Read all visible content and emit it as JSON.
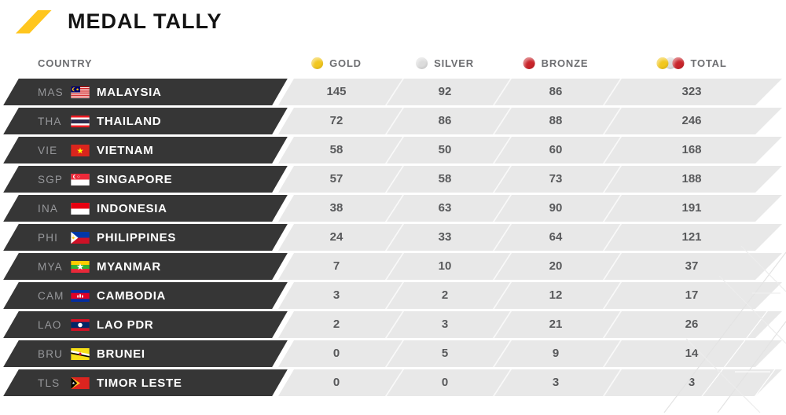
{
  "header": {
    "title": "MEDAL TALLY"
  },
  "table": {
    "country_header": "COUNTRY",
    "columns": [
      {
        "key": "gold",
        "label": "GOLD"
      },
      {
        "key": "silver",
        "label": "SILVER"
      },
      {
        "key": "bronze",
        "label": "BRONZE"
      },
      {
        "key": "total",
        "label": "TOTAL"
      }
    ],
    "rows": [
      {
        "code": "MAS",
        "country": "MALAYSIA",
        "flag": "malaysia",
        "gold": 145,
        "silver": 92,
        "bronze": 86,
        "total": 323
      },
      {
        "code": "THA",
        "country": "THAILAND",
        "flag": "thailand",
        "gold": 72,
        "silver": 86,
        "bronze": 88,
        "total": 246
      },
      {
        "code": "VIE",
        "country": "VIETNAM",
        "flag": "vietnam",
        "gold": 58,
        "silver": 50,
        "bronze": 60,
        "total": 168
      },
      {
        "code": "SGP",
        "country": "SINGAPORE",
        "flag": "singapore",
        "gold": 57,
        "silver": 58,
        "bronze": 73,
        "total": 188
      },
      {
        "code": "INA",
        "country": "INDONESIA",
        "flag": "indonesia",
        "gold": 38,
        "silver": 63,
        "bronze": 90,
        "total": 191
      },
      {
        "code": "PHI",
        "country": "PHILIPPINES",
        "flag": "philippines",
        "gold": 24,
        "silver": 33,
        "bronze": 64,
        "total": 121
      },
      {
        "code": "MYA",
        "country": "MYANMAR",
        "flag": "myanmar",
        "gold": 7,
        "silver": 10,
        "bronze": 20,
        "total": 37
      },
      {
        "code": "CAM",
        "country": "CAMBODIA",
        "flag": "cambodia",
        "gold": 3,
        "silver": 2,
        "bronze": 12,
        "total": 17
      },
      {
        "code": "LAO",
        "country": "LAO PDR",
        "flag": "laopdr",
        "gold": 2,
        "silver": 3,
        "bronze": 21,
        "total": 26
      },
      {
        "code": "BRU",
        "country": "BRUNEI",
        "flag": "brunei",
        "gold": 0,
        "silver": 5,
        "bronze": 9,
        "total": 14
      },
      {
        "code": "TLS",
        "country": "TIMOR LESTE",
        "flag": "timorleste",
        "gold": 0,
        "silver": 0,
        "bronze": 3,
        "total": 3
      }
    ]
  },
  "colors": {
    "accent_yellow": "#FFC61E",
    "gold_medal": "#F2C71E",
    "silver_medal": "#DCDCDC",
    "bronze_medal": "#C9252B",
    "row_label_bg": "#363636",
    "row_stripe_bg": "#E8E8E8",
    "header_text": "#6D6E71",
    "number_text": "#58595B"
  }
}
